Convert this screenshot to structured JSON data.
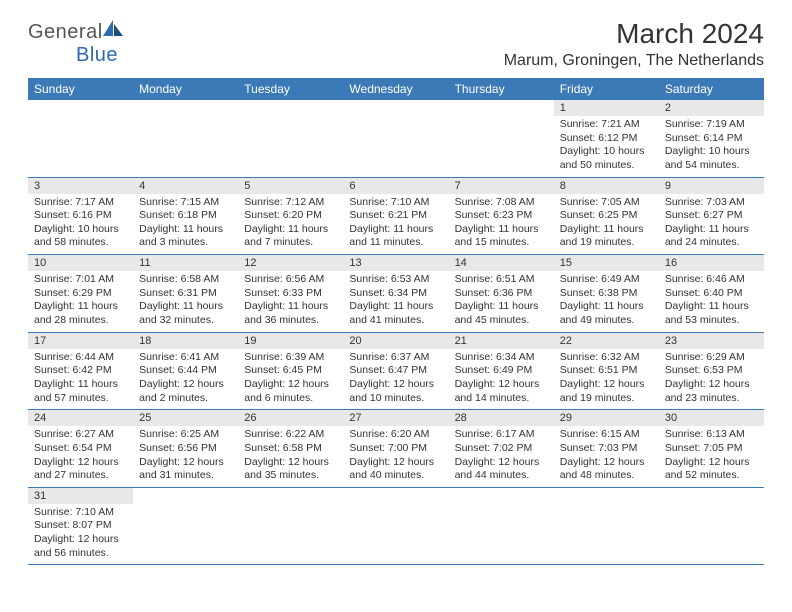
{
  "logo": {
    "text_gray": "General",
    "text_blue": "Blue"
  },
  "title": "March 2024",
  "location": "Marum, Groningen, The Netherlands",
  "colors": {
    "header_bg": "#3b79b7",
    "daynum_bg": "#e8e8e8",
    "row_border": "#3b79b7",
    "text": "#333333",
    "logo_gray": "#555555",
    "logo_blue": "#2b6bb0"
  },
  "day_headers": [
    "Sunday",
    "Monday",
    "Tuesday",
    "Wednesday",
    "Thursday",
    "Friday",
    "Saturday"
  ],
  "weeks": [
    [
      null,
      null,
      null,
      null,
      null,
      {
        "n": "1",
        "sr": "Sunrise: 7:21 AM",
        "ss": "Sunset: 6:12 PM",
        "d1": "Daylight: 10 hours",
        "d2": "and 50 minutes."
      },
      {
        "n": "2",
        "sr": "Sunrise: 7:19 AM",
        "ss": "Sunset: 6:14 PM",
        "d1": "Daylight: 10 hours",
        "d2": "and 54 minutes."
      }
    ],
    [
      {
        "n": "3",
        "sr": "Sunrise: 7:17 AM",
        "ss": "Sunset: 6:16 PM",
        "d1": "Daylight: 10 hours",
        "d2": "and 58 minutes."
      },
      {
        "n": "4",
        "sr": "Sunrise: 7:15 AM",
        "ss": "Sunset: 6:18 PM",
        "d1": "Daylight: 11 hours",
        "d2": "and 3 minutes."
      },
      {
        "n": "5",
        "sr": "Sunrise: 7:12 AM",
        "ss": "Sunset: 6:20 PM",
        "d1": "Daylight: 11 hours",
        "d2": "and 7 minutes."
      },
      {
        "n": "6",
        "sr": "Sunrise: 7:10 AM",
        "ss": "Sunset: 6:21 PM",
        "d1": "Daylight: 11 hours",
        "d2": "and 11 minutes."
      },
      {
        "n": "7",
        "sr": "Sunrise: 7:08 AM",
        "ss": "Sunset: 6:23 PM",
        "d1": "Daylight: 11 hours",
        "d2": "and 15 minutes."
      },
      {
        "n": "8",
        "sr": "Sunrise: 7:05 AM",
        "ss": "Sunset: 6:25 PM",
        "d1": "Daylight: 11 hours",
        "d2": "and 19 minutes."
      },
      {
        "n": "9",
        "sr": "Sunrise: 7:03 AM",
        "ss": "Sunset: 6:27 PM",
        "d1": "Daylight: 11 hours",
        "d2": "and 24 minutes."
      }
    ],
    [
      {
        "n": "10",
        "sr": "Sunrise: 7:01 AM",
        "ss": "Sunset: 6:29 PM",
        "d1": "Daylight: 11 hours",
        "d2": "and 28 minutes."
      },
      {
        "n": "11",
        "sr": "Sunrise: 6:58 AM",
        "ss": "Sunset: 6:31 PM",
        "d1": "Daylight: 11 hours",
        "d2": "and 32 minutes."
      },
      {
        "n": "12",
        "sr": "Sunrise: 6:56 AM",
        "ss": "Sunset: 6:33 PM",
        "d1": "Daylight: 11 hours",
        "d2": "and 36 minutes."
      },
      {
        "n": "13",
        "sr": "Sunrise: 6:53 AM",
        "ss": "Sunset: 6:34 PM",
        "d1": "Daylight: 11 hours",
        "d2": "and 41 minutes."
      },
      {
        "n": "14",
        "sr": "Sunrise: 6:51 AM",
        "ss": "Sunset: 6:36 PM",
        "d1": "Daylight: 11 hours",
        "d2": "and 45 minutes."
      },
      {
        "n": "15",
        "sr": "Sunrise: 6:49 AM",
        "ss": "Sunset: 6:38 PM",
        "d1": "Daylight: 11 hours",
        "d2": "and 49 minutes."
      },
      {
        "n": "16",
        "sr": "Sunrise: 6:46 AM",
        "ss": "Sunset: 6:40 PM",
        "d1": "Daylight: 11 hours",
        "d2": "and 53 minutes."
      }
    ],
    [
      {
        "n": "17",
        "sr": "Sunrise: 6:44 AM",
        "ss": "Sunset: 6:42 PM",
        "d1": "Daylight: 11 hours",
        "d2": "and 57 minutes."
      },
      {
        "n": "18",
        "sr": "Sunrise: 6:41 AM",
        "ss": "Sunset: 6:44 PM",
        "d1": "Daylight: 12 hours",
        "d2": "and 2 minutes."
      },
      {
        "n": "19",
        "sr": "Sunrise: 6:39 AM",
        "ss": "Sunset: 6:45 PM",
        "d1": "Daylight: 12 hours",
        "d2": "and 6 minutes."
      },
      {
        "n": "20",
        "sr": "Sunrise: 6:37 AM",
        "ss": "Sunset: 6:47 PM",
        "d1": "Daylight: 12 hours",
        "d2": "and 10 minutes."
      },
      {
        "n": "21",
        "sr": "Sunrise: 6:34 AM",
        "ss": "Sunset: 6:49 PM",
        "d1": "Daylight: 12 hours",
        "d2": "and 14 minutes."
      },
      {
        "n": "22",
        "sr": "Sunrise: 6:32 AM",
        "ss": "Sunset: 6:51 PM",
        "d1": "Daylight: 12 hours",
        "d2": "and 19 minutes."
      },
      {
        "n": "23",
        "sr": "Sunrise: 6:29 AM",
        "ss": "Sunset: 6:53 PM",
        "d1": "Daylight: 12 hours",
        "d2": "and 23 minutes."
      }
    ],
    [
      {
        "n": "24",
        "sr": "Sunrise: 6:27 AM",
        "ss": "Sunset: 6:54 PM",
        "d1": "Daylight: 12 hours",
        "d2": "and 27 minutes."
      },
      {
        "n": "25",
        "sr": "Sunrise: 6:25 AM",
        "ss": "Sunset: 6:56 PM",
        "d1": "Daylight: 12 hours",
        "d2": "and 31 minutes."
      },
      {
        "n": "26",
        "sr": "Sunrise: 6:22 AM",
        "ss": "Sunset: 6:58 PM",
        "d1": "Daylight: 12 hours",
        "d2": "and 35 minutes."
      },
      {
        "n": "27",
        "sr": "Sunrise: 6:20 AM",
        "ss": "Sunset: 7:00 PM",
        "d1": "Daylight: 12 hours",
        "d2": "and 40 minutes."
      },
      {
        "n": "28",
        "sr": "Sunrise: 6:17 AM",
        "ss": "Sunset: 7:02 PM",
        "d1": "Daylight: 12 hours",
        "d2": "and 44 minutes."
      },
      {
        "n": "29",
        "sr": "Sunrise: 6:15 AM",
        "ss": "Sunset: 7:03 PM",
        "d1": "Daylight: 12 hours",
        "d2": "and 48 minutes."
      },
      {
        "n": "30",
        "sr": "Sunrise: 6:13 AM",
        "ss": "Sunset: 7:05 PM",
        "d1": "Daylight: 12 hours",
        "d2": "and 52 minutes."
      }
    ],
    [
      {
        "n": "31",
        "sr": "Sunrise: 7:10 AM",
        "ss": "Sunset: 8:07 PM",
        "d1": "Daylight: 12 hours",
        "d2": "and 56 minutes."
      },
      null,
      null,
      null,
      null,
      null,
      null
    ]
  ]
}
